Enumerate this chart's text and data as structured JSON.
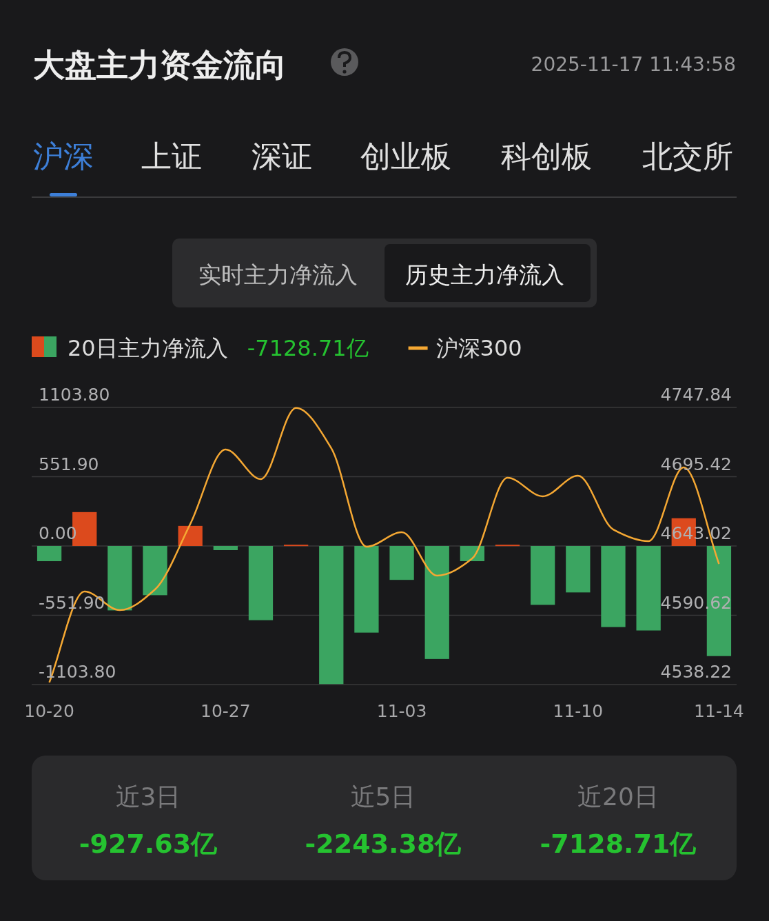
{
  "chart_data": {
    "type": "bar",
    "title": "大盘主力资金流向",
    "subtitle": "2025-11-17 11:43:58",
    "categories": [
      "10-20",
      null,
      null,
      null,
      null,
      "10-27",
      null,
      null,
      null,
      null,
      "11-03",
      null,
      null,
      null,
      null,
      "11-10",
      null,
      null,
      null,
      "11-14"
    ],
    "series": [
      {
        "name": "20日主力净流入",
        "colors": [
          "#3ba561",
          "#dc4a1d",
          "#3ba561",
          "#3ba561",
          "#dc4a1d",
          "#3ba561",
          "#3ba561",
          "#dc4a1d",
          "#3ba561",
          "#3ba561",
          "#3ba561",
          "#3ba561",
          "#3ba561",
          "#dc4a1d",
          "#3ba561",
          "#3ba561",
          "#3ba561",
          "#3ba561",
          "#dc4a1d",
          "#3ba561"
        ],
        "values": [
          -121,
          270,
          -513,
          -392,
          160,
          -33,
          -591,
          10,
          -1100,
          -690,
          -270,
          -900,
          -121,
          10,
          -469,
          -370,
          -646,
          -673,
          221,
          -877
        ]
      },
      {
        "name": "沪深300",
        "type": "line",
        "axis": "y2",
        "color": "#f5a833",
        "values": [
          4539.8,
          4608.6,
          4594.5,
          4610.2,
          4659.7,
          4716.0,
          4693.6,
          4747.5,
          4717.0,
          4642.5,
          4653.4,
          4620.6,
          4633.6,
          4694.6,
          4680.6,
          4696.2,
          4655.5,
          4646.7,
          4702.5,
          4629.5
        ]
      }
    ],
    "ylim": [
      -1103.8,
      1103.8
    ],
    "yticks": [
      {
        "value": 1103.8,
        "label": "1103.80"
      },
      {
        "value": 551.9,
        "label": "551.90"
      },
      {
        "value": 0,
        "label": "0.00"
      },
      {
        "value": -551.9,
        "label": "-551.90"
      },
      {
        "value": -1103.8,
        "label": "-1103.80"
      }
    ],
    "y2lim": [
      4538.22,
      4747.84
    ],
    "y2ticks": [
      {
        "value": 4747.84,
        "label": "4747.84"
      },
      {
        "value": 4695.42,
        "label": "4695.42"
      },
      {
        "value": 4643.02,
        "label": "4643.02"
      },
      {
        "value": 4590.62,
        "label": "4590.62"
      },
      {
        "value": 4538.22,
        "label": "4538.22"
      }
    ],
    "grid": "y",
    "legend": "top left",
    "annotations": [
      "沪深",
      "上证",
      "深证",
      "创业板",
      "科创板",
      "北交所",
      "实时主力净流入",
      "历史主力净流入",
      "-7128.71亿",
      "近3日",
      "-927.63亿",
      "近5日",
      "-2243.38亿",
      "近20日",
      "-7128.71亿"
    ]
  }
}
